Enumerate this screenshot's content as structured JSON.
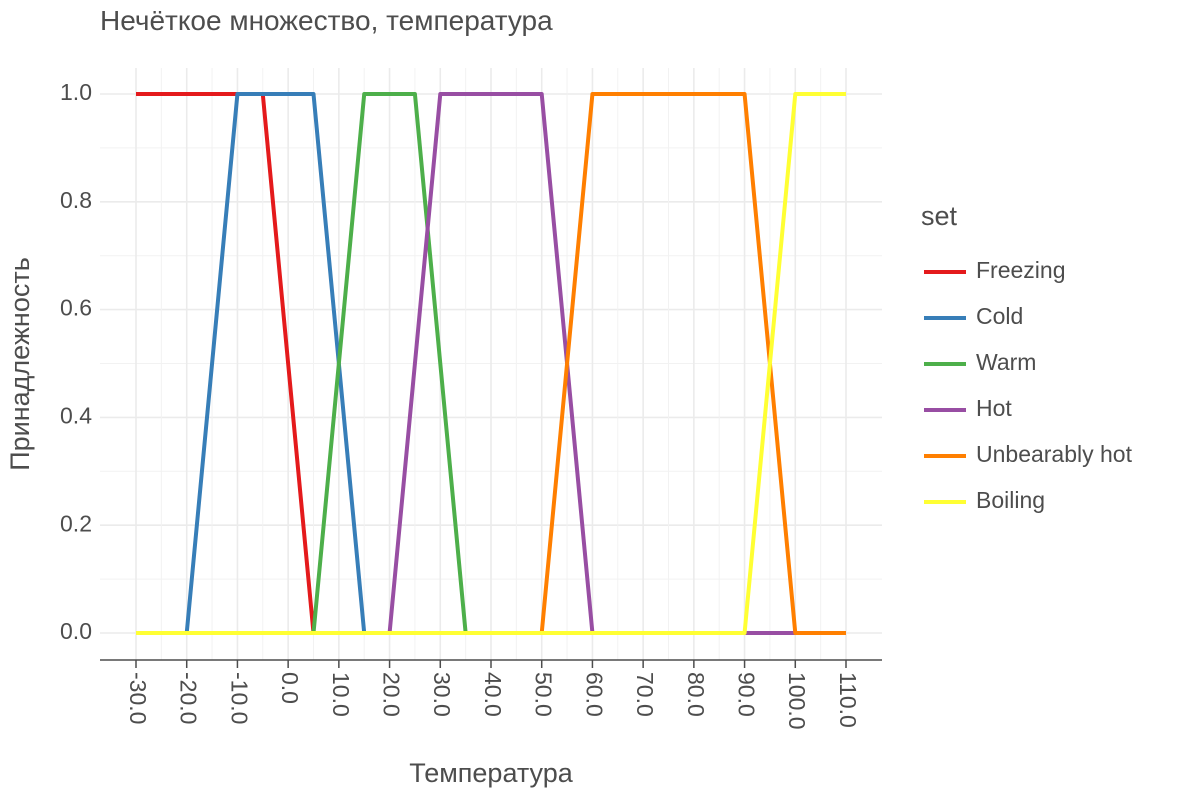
{
  "chart_data": {
    "type": "line",
    "title": "Нечёткое множество, температура",
    "xlabel": "Температура",
    "ylabel": "Принадлежность",
    "xlim": [
      -30,
      110
    ],
    "ylim": [
      0,
      1
    ],
    "x_ticks": [
      "-30.0",
      "-20.0",
      "-10.0",
      "0.0",
      "10.0",
      "20.0",
      "30.0",
      "40.0",
      "50.0",
      "60.0",
      "70.0",
      "80.0",
      "90.0",
      "100.0",
      "110.0"
    ],
    "y_ticks": [
      "0.0",
      "0.2",
      "0.4",
      "0.6",
      "0.8",
      "1.0"
    ],
    "grid": true,
    "legend": {
      "title": "set",
      "position": "right"
    },
    "series": [
      {
        "name": "Freezing",
        "color": "#e41a1c",
        "points": [
          [
            -30,
            1
          ],
          [
            -5,
            1
          ],
          [
            0,
            0.5
          ],
          [
            5,
            0
          ],
          [
            110,
            0
          ]
        ]
      },
      {
        "name": "Cold",
        "color": "#377eb8",
        "points": [
          [
            -30,
            0
          ],
          [
            -20,
            0
          ],
          [
            -10,
            1
          ],
          [
            5,
            1
          ],
          [
            10,
            0.5
          ],
          [
            15,
            0
          ],
          [
            110,
            0
          ]
        ]
      },
      {
        "name": "Warm",
        "color": "#4daf4a",
        "points": [
          [
            -30,
            0
          ],
          [
            5,
            0
          ],
          [
            10,
            0.5
          ],
          [
            15,
            1
          ],
          [
            25,
            1
          ],
          [
            30,
            0.5
          ],
          [
            35,
            0
          ],
          [
            110,
            0
          ]
        ]
      },
      {
        "name": "Hot",
        "color": "#984ea3",
        "points": [
          [
            -30,
            0
          ],
          [
            20,
            0
          ],
          [
            25,
            0.5
          ],
          [
            30,
            1
          ],
          [
            50,
            1
          ],
          [
            52,
            0.8
          ],
          [
            55,
            0.5
          ],
          [
            60,
            0
          ],
          [
            110,
            0
          ]
        ]
      },
      {
        "name": "Unbearably hot",
        "color": "#ff7f00",
        "points": [
          [
            -30,
            0
          ],
          [
            50,
            0
          ],
          [
            55,
            0.5
          ],
          [
            60,
            1
          ],
          [
            90,
            1
          ],
          [
            95,
            0.5
          ],
          [
            100,
            0
          ],
          [
            110,
            0
          ]
        ]
      },
      {
        "name": "Boiling",
        "color": "#ffff33",
        "points": [
          [
            -30,
            0
          ],
          [
            90,
            0
          ],
          [
            95,
            0.5
          ],
          [
            100,
            1
          ],
          [
            110,
            1
          ]
        ]
      }
    ]
  }
}
